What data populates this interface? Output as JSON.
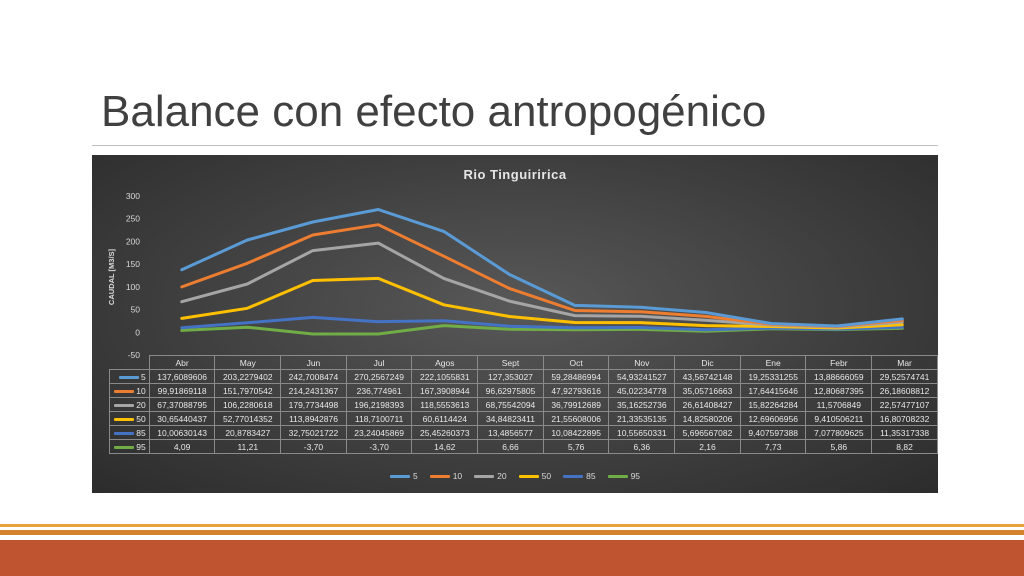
{
  "slide": {
    "title": "Balance con efecto antropogénico"
  },
  "chart_data": {
    "type": "line",
    "title": "Rio Tinguiririca",
    "ylabel": "CAUDAL [M3/S]",
    "xlabel": "",
    "ylim": [
      -50,
      300
    ],
    "yticks": [
      "300",
      "250",
      "200",
      "150",
      "100",
      "50",
      "0",
      "-50"
    ],
    "yticks_values": [
      300,
      250,
      200,
      150,
      100,
      50,
      0,
      -50
    ],
    "grid": false,
    "legend": "bottom",
    "categories": [
      "Abr",
      "May",
      "Jun",
      "Jul",
      "Agos",
      "Sept",
      "Oct",
      "Nov",
      "Dic",
      "Ene",
      "Febr",
      "Mar"
    ],
    "series": [
      {
        "name": "5",
        "color": "#5b9bd5",
        "values": [
          137.6089606,
          203.2279402,
          242.7008474,
          270.2567249,
          222.1055831,
          127.353027,
          59.28486994,
          54.93241527,
          43.56742148,
          19.25331255,
          13.88666059,
          29.52574741
        ],
        "labels": [
          "137,6089606",
          "203,2279402",
          "242,7008474",
          "270,2567249",
          "222,1055831",
          "127,353027",
          "59,28486994",
          "54,93241527",
          "43,56742148",
          "19,25331255",
          "13,88666059",
          "29,52574741"
        ]
      },
      {
        "name": "10",
        "color": "#ed7d31",
        "values": [
          99.91869118,
          151.7970542,
          214.2431367,
          236.774961,
          167.3908944,
          96.62975805,
          47.92793616,
          45.02234778,
          35.05716663,
          17.64415646,
          12.80687395,
          26.18608812
        ],
        "labels": [
          "99,91869118",
          "151,7970542",
          "214,2431367",
          "236,774961",
          "167,3908944",
          "96,62975805",
          "47,92793616",
          "45,02234778",
          "35,05716663",
          "17,64415646",
          "12,80687395",
          "26,18608812"
        ]
      },
      {
        "name": "20",
        "color": "#a5a5a5",
        "values": [
          67.37088795,
          106.2280618,
          179.7734498,
          196.2198393,
          118.5553613,
          68.75542094,
          36.79912689,
          35.16252736,
          26.61408427,
          15.82264284,
          11.5706849,
          22.57477107
        ],
        "labels": [
          "67,37088795",
          "106,2280618",
          "179,7734498",
          "196,2198393",
          "118,5553613",
          "68,75542094",
          "36,79912689",
          "35,16252736",
          "26,61408427",
          "15,82264284",
          "11,5706849",
          "22,57477107"
        ]
      },
      {
        "name": "50",
        "color": "#ffc000",
        "values": [
          30.65440437,
          52.77014352,
          113.8942876,
          118.7100711,
          60.6114424,
          34.84823411,
          21.55608006,
          21.33535135,
          14.82580206,
          12.69606956,
          9.410506211,
          16.80708232
        ],
        "labels": [
          "30,65440437",
          "52,77014352",
          "113,8942876",
          "118,7100711",
          "60,6114424",
          "34,84823411",
          "21,55608006",
          "21,33535135",
          "14,82580206",
          "12,69606956",
          "9,410506211",
          "16,80708232"
        ]
      },
      {
        "name": "85",
        "color": "#4472c4",
        "values": [
          10.00630143,
          20.8783427,
          32.75021722,
          23.24045869,
          25.45260373,
          13.4856577,
          10.08422895,
          10.55650331,
          5.696567082,
          9.407597388,
          7.077809625,
          11.35317338
        ],
        "labels": [
          "10,00630143",
          "20,8783427",
          "32,75021722",
          "23,24045869",
          "25,45260373",
          "13,4856577",
          "10,08422895",
          "10,55650331",
          "5,696567082",
          "9,407597388",
          "7,077809625",
          "11,35317338"
        ]
      },
      {
        "name": "95",
        "color": "#70ad47",
        "values": [
          4.09,
          11.21,
          -3.7,
          -3.7,
          14.62,
          6.66,
          5.76,
          6.36,
          2.16,
          7.73,
          5.86,
          8.82
        ],
        "labels": [
          "4,09",
          "11,21",
          "-3,70",
          "-3,70",
          "14,62",
          "6,66",
          "5,76",
          "6,36",
          "2,16",
          "7,73",
          "5,86",
          "8,82"
        ]
      }
    ]
  }
}
